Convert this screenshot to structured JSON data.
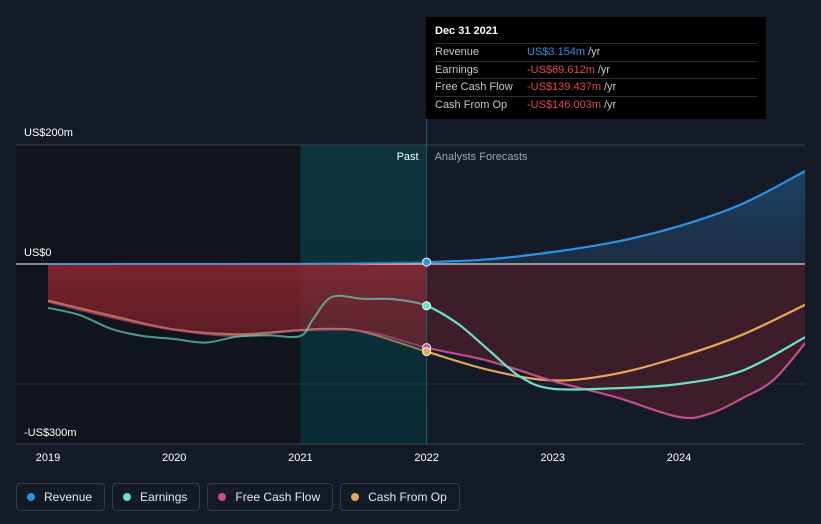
{
  "chart_data": {
    "type": "line",
    "x_ticks": [
      "2019",
      "2020",
      "2021",
      "2022",
      "2023",
      "2024"
    ],
    "y_labels": {
      "top": "US$200m",
      "zero": "US$0",
      "bottom": "-US$300m"
    },
    "ylim": [
      -300,
      200
    ],
    "regions": {
      "past": "Past",
      "forecast": "Analysts Forecasts"
    },
    "series": [
      {
        "name": "Revenue",
        "color": "#2b93e8",
        "points": [
          [
            2019.0,
            0
          ],
          [
            2020.0,
            0.2
          ],
          [
            2021.0,
            0.5
          ],
          [
            2021.5,
            1.5
          ],
          [
            2022.0,
            3.154
          ],
          [
            2022.5,
            8
          ],
          [
            2023.0,
            20
          ],
          [
            2023.5,
            37
          ],
          [
            2024.0,
            63
          ],
          [
            2024.5,
            100
          ],
          [
            2025.0,
            155
          ]
        ]
      },
      {
        "name": "Earnings",
        "color": "#6ee0c8",
        "points": [
          [
            2019.0,
            -73
          ],
          [
            2019.25,
            -85
          ],
          [
            2019.5,
            -108
          ],
          [
            2019.75,
            -120
          ],
          [
            2020.0,
            -125
          ],
          [
            2020.25,
            -131
          ],
          [
            2020.5,
            -121
          ],
          [
            2020.75,
            -119
          ],
          [
            2021.0,
            -120
          ],
          [
            2021.1,
            -92
          ],
          [
            2021.25,
            -55
          ],
          [
            2021.5,
            -58
          ],
          [
            2021.75,
            -59
          ],
          [
            2022.0,
            -69.612
          ],
          [
            2022.25,
            -100
          ],
          [
            2022.5,
            -145
          ],
          [
            2022.75,
            -189
          ],
          [
            2023.0,
            -208
          ],
          [
            2023.5,
            -207
          ],
          [
            2024.0,
            -200
          ],
          [
            2024.5,
            -178
          ],
          [
            2025.0,
            -122
          ]
        ]
      },
      {
        "name": "Free Cash Flow",
        "color": "#c24e8c",
        "points": [
          [
            2019.0,
            -63
          ],
          [
            2019.5,
            -89
          ],
          [
            2020.0,
            -110
          ],
          [
            2020.5,
            -120
          ],
          [
            2021.0,
            -111
          ],
          [
            2021.5,
            -112
          ],
          [
            2022.0,
            -139.437
          ],
          [
            2022.5,
            -162
          ],
          [
            2023.0,
            -195
          ],
          [
            2023.5,
            -222
          ],
          [
            2024.0,
            -255
          ],
          [
            2024.25,
            -249
          ],
          [
            2024.5,
            -224
          ],
          [
            2024.75,
            -193
          ],
          [
            2025.0,
            -132
          ]
        ]
      },
      {
        "name": "Cash From Op",
        "color": "#e7a65a",
        "points": [
          [
            2019.0,
            -61
          ],
          [
            2019.5,
            -86
          ],
          [
            2020.0,
            -109
          ],
          [
            2020.5,
            -117
          ],
          [
            2021.0,
            -110
          ],
          [
            2021.25,
            -108
          ],
          [
            2021.5,
            -113
          ],
          [
            2022.0,
            -146.003
          ],
          [
            2022.5,
            -177
          ],
          [
            2023.0,
            -194
          ],
          [
            2023.5,
            -183
          ],
          [
            2024.0,
            -155
          ],
          [
            2024.5,
            -118
          ],
          [
            2025.0,
            -68
          ]
        ]
      }
    ]
  },
  "tooltip": {
    "date": "Dec 31 2021",
    "rows": [
      {
        "label": "Revenue",
        "value": "US$3.154m",
        "unit": "/yr",
        "color": "#2b93e8"
      },
      {
        "label": "Earnings",
        "value": "-US$69.612m",
        "unit": "/yr",
        "color": "#e5494c"
      },
      {
        "label": "Free Cash Flow",
        "value": "-US$139.437m",
        "unit": "/yr",
        "color": "#e5494c"
      },
      {
        "label": "Cash From Op",
        "value": "-US$146.003m",
        "unit": "/yr",
        "color": "#e5494c"
      }
    ]
  },
  "legend": [
    {
      "label": "Revenue",
      "color": "#2b93e8"
    },
    {
      "label": "Earnings",
      "color": "#6ee0c8"
    },
    {
      "label": "Free Cash Flow",
      "color": "#c24e8c"
    },
    {
      "label": "Cash From Op",
      "color": "#e7a65a"
    }
  ]
}
